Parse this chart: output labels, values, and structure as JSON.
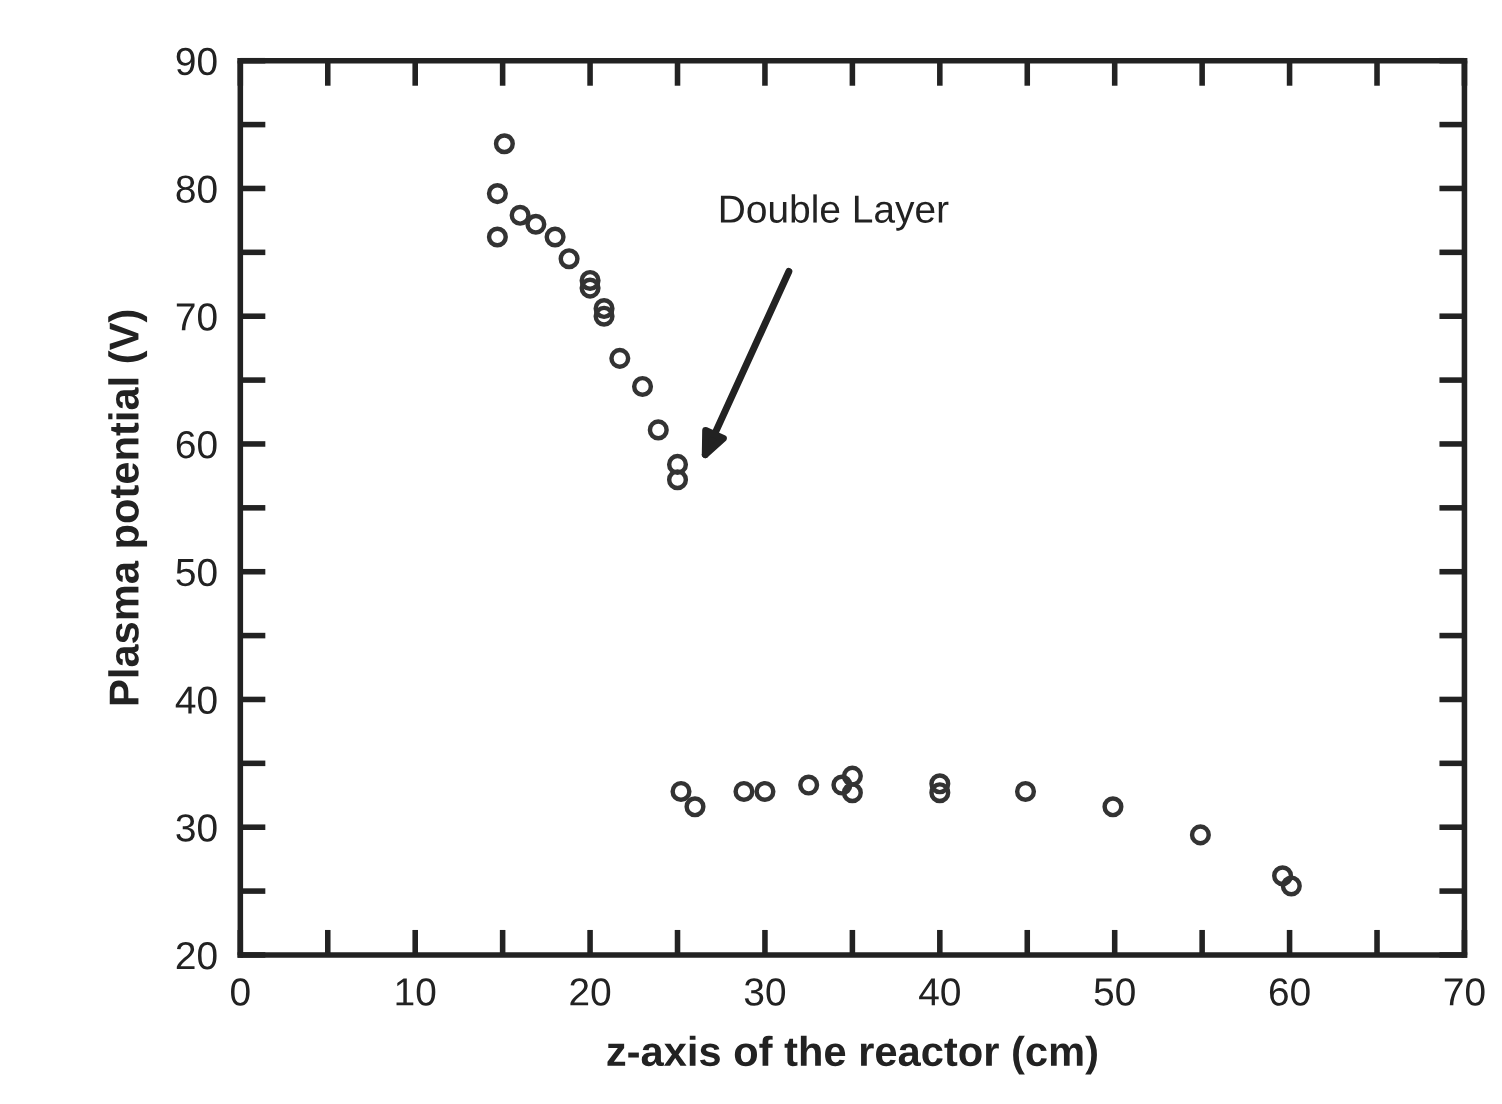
{
  "chart_data": {
    "type": "scatter",
    "xlabel": "z-axis of the reactor (cm)",
    "ylabel": "Plasma potential (V)",
    "x": [
      15.1,
      14.7,
      14.7,
      16,
      16.9,
      18,
      18.8,
      20,
      20,
      20.8,
      20.8,
      21.7,
      23,
      23.9,
      25,
      25,
      25.2,
      26,
      28.8,
      30,
      32.5,
      34.4,
      35,
      35,
      40,
      40,
      44.9,
      49.9,
      54.9,
      59.6,
      60.1
    ],
    "series": [
      {
        "color": "#333333",
        "values": [
          83.5,
          79.6,
          76.2,
          77.9,
          77.2,
          76.2,
          74.5,
          72.8,
          72.2,
          70.6,
          70.0,
          66.7,
          64.5,
          61.1,
          58.4,
          57.2,
          32.8,
          31.6,
          32.8,
          32.8,
          33.3,
          33.3,
          34,
          32.7,
          33.4,
          32.7,
          32.8,
          31.6,
          29.4,
          26.2,
          25.4
        ]
      }
    ],
    "marker": "circle",
    "grid": false,
    "legend": false,
    "xlim": [
      0,
      70
    ],
    "ylim": [
      20,
      90
    ],
    "xticks": [
      0,
      {
        "value": 5,
        "label": null
      },
      10,
      {
        "value": 15,
        "label": null
      },
      20,
      {
        "value": 25,
        "label": null
      },
      30,
      {
        "value": 35,
        "label": null
      },
      40,
      {
        "value": 45,
        "label": null
      },
      50,
      {
        "value": 55,
        "label": null
      },
      60,
      {
        "value": 65,
        "label": null
      },
      70
    ],
    "yticks": [
      20,
      {
        "value": 25,
        "label": null
      },
      30,
      {
        "value": 35,
        "label": null
      },
      40,
      {
        "value": 45,
        "label": null
      },
      50,
      {
        "value": 55,
        "label": null
      },
      60,
      {
        "value": 65,
        "label": null
      },
      70,
      {
        "value": 75,
        "label": null
      },
      80,
      {
        "value": 85,
        "label": null
      },
      90
    ],
    "annotations": [
      "Double Layer"
    ]
  }
}
